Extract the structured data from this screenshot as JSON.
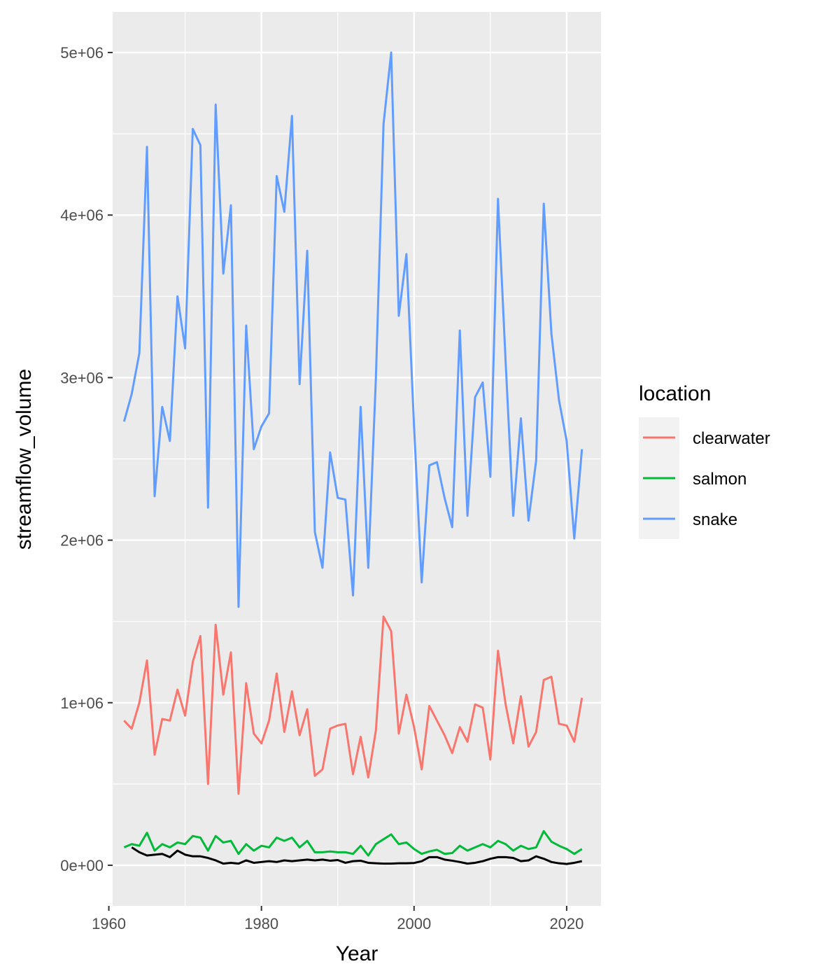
{
  "chart_data": {
    "type": "line",
    "xlabel": "Year",
    "ylabel": "streamflow_volume",
    "xlim": [
      1960.5,
      2024.5
    ],
    "ylim": [
      -250000,
      5250000
    ],
    "x_ticks": [
      1960,
      1980,
      2000,
      2020
    ],
    "x_tick_labels": [
      "1960",
      "1980",
      "2000",
      "2020"
    ],
    "y_ticks": [
      0,
      1000000,
      2000000,
      3000000,
      4000000,
      5000000
    ],
    "y_tick_labels": [
      "0e+00",
      "1e+06",
      "2e+06",
      "3e+06",
      "4e+06",
      "5e+06"
    ],
    "grid": true,
    "legend_title": "location",
    "legend_position": "right",
    "series": [
      {
        "name": "clearwater",
        "color": "#F8766D",
        "x": [
          1962,
          1963,
          1964,
          1965,
          1966,
          1967,
          1968,
          1969,
          1970,
          1971,
          1972,
          1973,
          1974,
          1975,
          1976,
          1977,
          1978,
          1979,
          1980,
          1981,
          1982,
          1983,
          1984,
          1985,
          1986,
          1987,
          1988,
          1989,
          1990,
          1991,
          1992,
          1993,
          1994,
          1995,
          1996,
          1997,
          1998,
          1999,
          2000,
          2001,
          2002,
          2003,
          2004,
          2005,
          2006,
          2007,
          2008,
          2009,
          2010,
          2011,
          2012,
          2013,
          2014,
          2015,
          2016,
          2017,
          2018,
          2019,
          2020,
          2021,
          2022
        ],
        "y": [
          890000,
          840000,
          1000000,
          1260000,
          680000,
          900000,
          890000,
          1080000,
          920000,
          1250000,
          1410000,
          500000,
          1480000,
          1050000,
          1310000,
          440000,
          1120000,
          810000,
          750000,
          890000,
          1180000,
          820000,
          1070000,
          800000,
          960000,
          550000,
          590000,
          840000,
          860000,
          870000,
          560000,
          790000,
          540000,
          830000,
          1530000,
          1440000,
          810000,
          1050000,
          850000,
          590000,
          980000,
          890000,
          800000,
          690000,
          850000,
          760000,
          990000,
          970000,
          650000,
          1320000,
          990000,
          750000,
          1040000,
          730000,
          820000,
          1140000,
          1160000,
          870000,
          860000,
          760000,
          1030000
        ]
      },
      {
        "name": "salmon",
        "color": "#00BA38",
        "x": [
          1962,
          1963,
          1964,
          1965,
          1966,
          1967,
          1968,
          1969,
          1970,
          1971,
          1972,
          1973,
          1974,
          1975,
          1976,
          1977,
          1978,
          1979,
          1980,
          1981,
          1982,
          1983,
          1984,
          1985,
          1986,
          1987,
          1988,
          1989,
          1990,
          1991,
          1992,
          1993,
          1994,
          1995,
          1996,
          1997,
          1998,
          1999,
          2000,
          2001,
          2002,
          2003,
          2004,
          2005,
          2006,
          2007,
          2008,
          2009,
          2010,
          2011,
          2012,
          2013,
          2014,
          2015,
          2016,
          2017,
          2018,
          2019,
          2020,
          2021,
          2022
        ],
        "y": [
          110000,
          130000,
          120000,
          200000,
          90000,
          130000,
          110000,
          140000,
          130000,
          180000,
          170000,
          90000,
          180000,
          140000,
          150000,
          70000,
          130000,
          90000,
          120000,
          110000,
          170000,
          150000,
          170000,
          110000,
          150000,
          80000,
          80000,
          85000,
          80000,
          80000,
          70000,
          120000,
          60000,
          130000,
          160000,
          190000,
          130000,
          140000,
          100000,
          70000,
          85000,
          95000,
          70000,
          75000,
          120000,
          90000,
          110000,
          130000,
          110000,
          150000,
          130000,
          90000,
          120000,
          100000,
          110000,
          210000,
          145000,
          120000,
          100000,
          70000,
          100000
        ]
      },
      {
        "name": "snake",
        "color": "#619CFF",
        "x": [
          1962,
          1963,
          1964,
          1965,
          1966,
          1967,
          1968,
          1969,
          1970,
          1971,
          1972,
          1973,
          1974,
          1975,
          1976,
          1977,
          1978,
          1979,
          1980,
          1981,
          1982,
          1983,
          1984,
          1985,
          1986,
          1987,
          1988,
          1989,
          1990,
          1991,
          1992,
          1993,
          1994,
          1995,
          1996,
          1997,
          1998,
          1999,
          2000,
          2001,
          2002,
          2003,
          2004,
          2005,
          2006,
          2007,
          2008,
          2009,
          2010,
          2011,
          2012,
          2013,
          2014,
          2015,
          2016,
          2017,
          2018,
          2019,
          2020,
          2021,
          2022
        ],
        "y": [
          2730000,
          2900000,
          3150000,
          4420000,
          2270000,
          2820000,
          2610000,
          3500000,
          3180000,
          4530000,
          4430000,
          2200000,
          4680000,
          3640000,
          4060000,
          1590000,
          3320000,
          2560000,
          2700000,
          2780000,
          4240000,
          4020000,
          4610000,
          2960000,
          3780000,
          2050000,
          1830000,
          2540000,
          2260000,
          2250000,
          1660000,
          2820000,
          1830000,
          3000000,
          4560000,
          5000000,
          3380000,
          3760000,
          2700000,
          1740000,
          2460000,
          2480000,
          2260000,
          2080000,
          3290000,
          2150000,
          2880000,
          2970000,
          2390000,
          4100000,
          3100000,
          2150000,
          2750000,
          2120000,
          2490000,
          4070000,
          3270000,
          2860000,
          2610000,
          2010000,
          2560000
        ]
      },
      {
        "name": "",
        "color": "#000000",
        "x": [
          1963,
          1964,
          1965,
          1966,
          1967,
          1968,
          1969,
          1970,
          1971,
          1972,
          1973,
          1974,
          1975,
          1976,
          1977,
          1978,
          1979,
          1980,
          1981,
          1982,
          1983,
          1984,
          1985,
          1986,
          1987,
          1988,
          1989,
          1990,
          1991,
          1992,
          1993,
          1994,
          1995,
          1996,
          1997,
          1998,
          1999,
          2000,
          2001,
          2002,
          2003,
          2004,
          2005,
          2006,
          2007,
          2008,
          2009,
          2010,
          2011,
          2012,
          2013,
          2014,
          2015,
          2016,
          2017,
          2018,
          2019,
          2020,
          2021,
          2022
        ],
        "y": [
          110000,
          80000,
          60000,
          65000,
          70000,
          50000,
          90000,
          65000,
          55000,
          55000,
          45000,
          30000,
          10000,
          15000,
          10000,
          30000,
          15000,
          20000,
          25000,
          20000,
          30000,
          25000,
          30000,
          35000,
          30000,
          35000,
          28000,
          32000,
          15000,
          25000,
          28000,
          15000,
          12000,
          10000,
          10000,
          12000,
          12000,
          14000,
          25000,
          50000,
          50000,
          35000,
          28000,
          20000,
          10000,
          15000,
          25000,
          40000,
          50000,
          50000,
          45000,
          25000,
          30000,
          55000,
          40000,
          20000,
          12000,
          8000,
          15000,
          25000
        ]
      }
    ]
  }
}
